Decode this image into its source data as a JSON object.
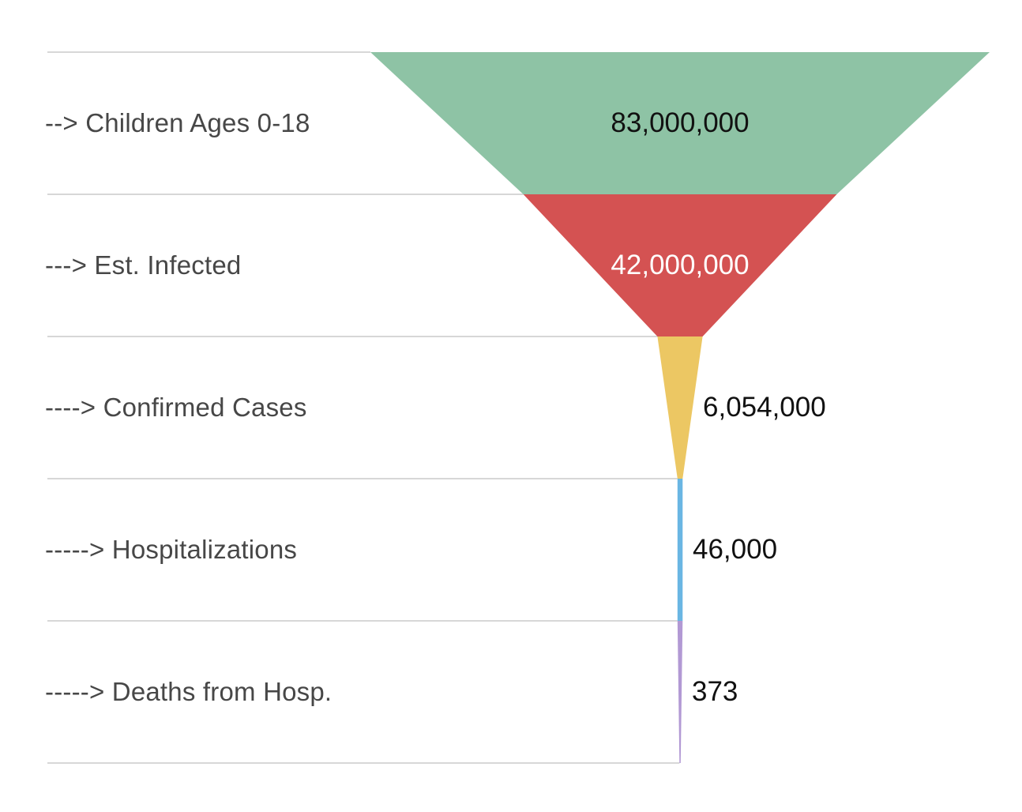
{
  "chart_data": {
    "type": "funnel",
    "title": "",
    "categories": [
      "--> Children Ages 0-18",
      "---> Est. Infected",
      "----> Confirmed Cases",
      "-----> Hospitalizations",
      "-----> Deaths from Hosp."
    ],
    "values": [
      83000000,
      42000000,
      6054000,
      46000,
      373
    ],
    "value_labels": [
      "83,000,000",
      "42,000,000",
      "6,054,000",
      "46,000",
      "373"
    ],
    "segment_colors": [
      "#8EC3A5",
      "#D45252",
      "#ECC763",
      "#6AB6E3",
      "#B299D4"
    ],
    "value_label_colors": [
      "#111111",
      "#FFFFFF",
      "#111111",
      "#111111",
      "#111111"
    ],
    "value_label_placement": [
      "inside",
      "inside",
      "right",
      "right",
      "right"
    ],
    "label_color": "#474747",
    "divider_color": "#d7d7d7",
    "background_color": "#ffffff",
    "legend_position": "left-labels",
    "grid": "row-dividers",
    "orientation": "inverted-triangle",
    "width_proportional_to_value": true
  }
}
